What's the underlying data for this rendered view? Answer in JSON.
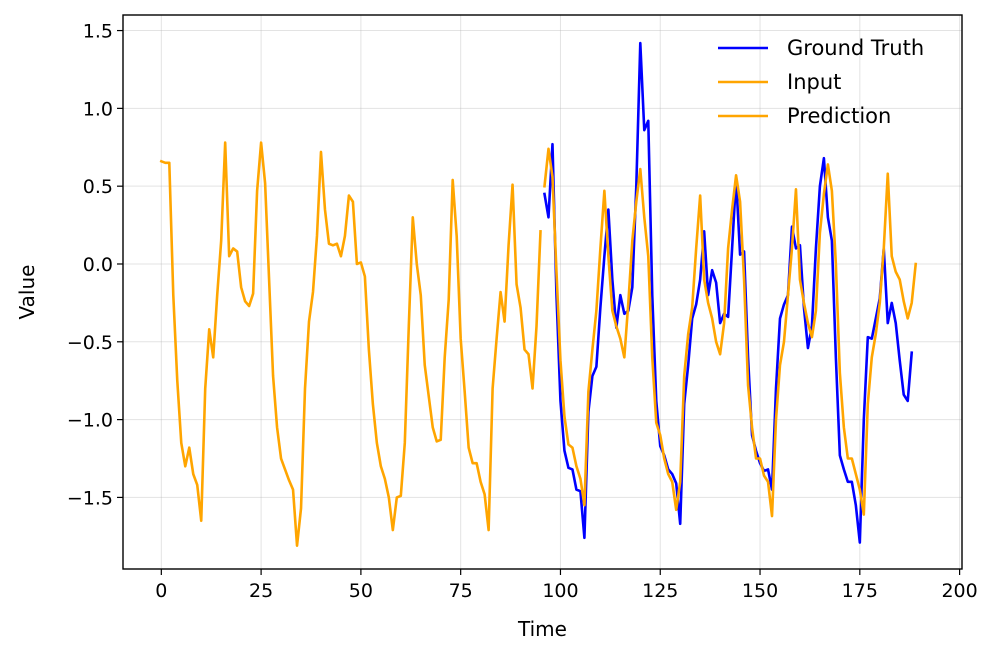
{
  "chart_data": {
    "type": "line",
    "title": "",
    "xlabel": "Time",
    "ylabel": "Value",
    "xlim": [
      -9.6,
      200.6
    ],
    "ylim": [
      -1.96,
      1.6
    ],
    "xticks": [
      0,
      25,
      50,
      75,
      100,
      125,
      150,
      175,
      200
    ],
    "yticks": [
      -1.5,
      -1.0,
      -0.5,
      0.0,
      0.5,
      1.0,
      1.5
    ],
    "grid": true,
    "legend_position": "top-right",
    "series": [
      {
        "name": "Ground Truth",
        "color": "#0000ff",
        "x_start": 96,
        "values": [
          0.45,
          0.3,
          0.77,
          -0.2,
          -0.88,
          -1.2,
          -1.31,
          -1.32,
          -1.45,
          -1.46,
          -1.76,
          -0.95,
          -0.72,
          -0.66,
          -0.28,
          0.05,
          0.35,
          -0.1,
          -0.41,
          -0.2,
          -0.32,
          -0.3,
          -0.15,
          0.5,
          1.42,
          0.86,
          0.92,
          -0.2,
          -0.88,
          -1.17,
          -1.23,
          -1.32,
          -1.35,
          -1.41,
          -1.67,
          -0.9,
          -0.65,
          -0.35,
          -0.26,
          -0.1,
          0.21,
          -0.2,
          -0.04,
          -0.12,
          -0.38,
          -0.32,
          -0.34,
          0.1,
          0.55,
          0.06,
          0.08,
          -0.6,
          -1.1,
          -1.2,
          -1.28,
          -1.33,
          -1.32,
          -1.45,
          -0.8,
          -0.35,
          -0.26,
          -0.2,
          0.24,
          0.1,
          0.12,
          -0.28,
          -0.54,
          -0.4,
          0.1,
          0.5,
          0.68,
          0.3,
          0.15,
          -0.6,
          -1.23,
          -1.32,
          -1.4,
          -1.4,
          -1.55,
          -1.79,
          -1.0,
          -0.47,
          -0.48,
          -0.35,
          -0.22,
          0.1,
          -0.38,
          -0.25,
          -0.38,
          -0.62,
          -0.84,
          -0.88,
          -0.57
        ]
      },
      {
        "name": "Input",
        "color": "#ffa500",
        "x_start": 0,
        "values": [
          0.66,
          0.65,
          0.65,
          -0.2,
          -0.75,
          -1.15,
          -1.3,
          -1.18,
          -1.35,
          -1.42,
          -1.65,
          -0.8,
          -0.42,
          -0.6,
          -0.2,
          0.15,
          0.78,
          0.05,
          0.1,
          0.08,
          -0.15,
          -0.24,
          -0.27,
          -0.19,
          0.47,
          0.78,
          0.52,
          -0.1,
          -0.72,
          -1.05,
          -1.25,
          -1.32,
          -1.39,
          -1.45,
          -1.81,
          -1.57,
          -0.8,
          -0.37,
          -0.18,
          0.18,
          0.72,
          0.35,
          0.13,
          0.12,
          0.13,
          0.05,
          0.18,
          0.44,
          0.4,
          0.0,
          0.01,
          -0.08,
          -0.55,
          -0.9,
          -1.15,
          -1.3,
          -1.38,
          -1.5,
          -1.71,
          -1.5,
          -1.49,
          -1.15,
          -0.4,
          0.3,
          0.0,
          -0.2,
          -0.65,
          -0.85,
          -1.05,
          -1.14,
          -1.13,
          -0.6,
          -0.23,
          0.54,
          0.18,
          -0.48,
          -0.82,
          -1.18,
          -1.28,
          -1.28,
          -1.4,
          -1.48,
          -1.71,
          -0.8,
          -0.48,
          -0.18,
          -0.37,
          0.12,
          0.51,
          -0.13,
          -0.28,
          -0.55,
          -0.58,
          -0.8,
          -0.4,
          0.21
        ]
      },
      {
        "name": "Prediction",
        "color": "#ffa500",
        "x_start": 96,
        "values": [
          0.5,
          0.74,
          0.56,
          -0.05,
          -0.62,
          -0.98,
          -1.16,
          -1.18,
          -1.3,
          -1.38,
          -1.55,
          -0.82,
          -0.55,
          -0.3,
          0.1,
          0.47,
          0.05,
          -0.3,
          -0.4,
          -0.48,
          -0.6,
          -0.25,
          0.15,
          0.4,
          0.61,
          0.3,
          0.05,
          -0.6,
          -1.02,
          -1.1,
          -1.25,
          -1.35,
          -1.4,
          -1.58,
          -1.4,
          -0.72,
          -0.45,
          -0.28,
          0.1,
          0.44,
          -0.1,
          -0.25,
          -0.35,
          -0.5,
          -0.58,
          -0.38,
          0.1,
          0.35,
          0.57,
          0.4,
          -0.1,
          -0.78,
          -1.05,
          -1.25,
          -1.25,
          -1.36,
          -1.4,
          -1.62,
          -1.0,
          -0.65,
          -0.5,
          -0.2,
          0.1,
          0.48,
          -0.1,
          -0.25,
          -0.38,
          -0.47,
          -0.3,
          0.2,
          0.45,
          0.64,
          0.47,
          0.0,
          -0.7,
          -1.05,
          -1.25,
          -1.25,
          -1.35,
          -1.45,
          -1.61,
          -0.9,
          -0.6,
          -0.45,
          -0.25,
          0.1,
          0.58,
          0.05,
          -0.05,
          -0.1,
          -0.24,
          -0.35,
          -0.25,
          0.0
        ]
      }
    ]
  }
}
